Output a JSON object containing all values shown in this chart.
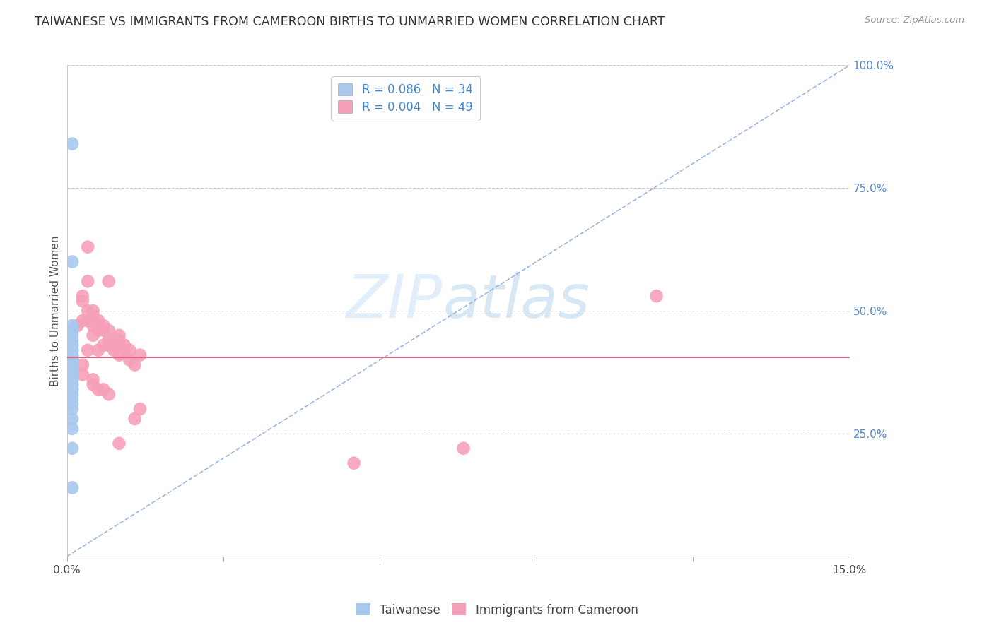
{
  "title": "TAIWANESE VS IMMIGRANTS FROM CAMEROON BIRTHS TO UNMARRIED WOMEN CORRELATION CHART",
  "source": "Source: ZipAtlas.com",
  "ylabel": "Births to Unmarried Women",
  "xlim": [
    0.0,
    0.15
  ],
  "ylim": [
    0.0,
    1.0
  ],
  "yticks": [
    0.0,
    0.25,
    0.5,
    0.75,
    1.0
  ],
  "ytick_labels": [
    "",
    "25.0%",
    "50.0%",
    "75.0%",
    "100.0%"
  ],
  "xticks": [
    0.0,
    0.03,
    0.06,
    0.09,
    0.12,
    0.15
  ],
  "xtick_labels": [
    "0.0%",
    "",
    "",
    "",
    "",
    "15.0%"
  ],
  "watermark_zip": "ZIP",
  "watermark_atlas": "atlas",
  "legend_R_taiwanese": "R = 0.086",
  "legend_N_taiwanese": "N = 34",
  "legend_R_cameroon": "R = 0.004",
  "legend_N_cameroon": "N = 49",
  "taiwanese_color": "#a8c8ee",
  "cameroon_color": "#f5a0b8",
  "taiwanese_line_color": "#88aadd",
  "cameroon_line_color": "#e05878",
  "grid_color": "#cccccc",
  "right_tick_color": "#5588cc",
  "tw_regression_x0": 0.0,
  "tw_regression_y0": 0.0,
  "tw_regression_x1": 0.15,
  "tw_regression_y1": 1.0,
  "cam_regression_y": 0.405,
  "taiwanese_x": [
    0.001,
    0.001,
    0.001,
    0.001,
    0.001,
    0.001,
    0.001,
    0.001,
    0.001,
    0.001,
    0.001,
    0.001,
    0.001,
    0.001,
    0.001,
    0.001,
    0.001,
    0.001,
    0.001,
    0.001,
    0.001,
    0.001,
    0.001,
    0.001,
    0.001,
    0.001,
    0.001,
    0.001,
    0.001,
    0.001,
    0.001,
    0.001,
    0.001,
    0.001
  ],
  "taiwanese_y": [
    0.84,
    0.6,
    0.47,
    0.46,
    0.45,
    0.44,
    0.43,
    0.43,
    0.42,
    0.42,
    0.41,
    0.41,
    0.4,
    0.4,
    0.4,
    0.39,
    0.38,
    0.38,
    0.37,
    0.37,
    0.36,
    0.36,
    0.35,
    0.35,
    0.34,
    0.34,
    0.33,
    0.32,
    0.31,
    0.3,
    0.28,
    0.26,
    0.22,
    0.14
  ],
  "cameroon_x": [
    0.004,
    0.008,
    0.004,
    0.003,
    0.003,
    0.005,
    0.005,
    0.004,
    0.004,
    0.003,
    0.006,
    0.006,
    0.002,
    0.007,
    0.005,
    0.008,
    0.007,
    0.006,
    0.005,
    0.01,
    0.008,
    0.009,
    0.01,
    0.007,
    0.008,
    0.011,
    0.009,
    0.011,
    0.006,
    0.004,
    0.009,
    0.012,
    0.014,
    0.01,
    0.012,
    0.013,
    0.003,
    0.003,
    0.005,
    0.005,
    0.007,
    0.006,
    0.008,
    0.014,
    0.013,
    0.01,
    0.076,
    0.113,
    0.055
  ],
  "cameroon_y": [
    0.63,
    0.56,
    0.56,
    0.53,
    0.52,
    0.5,
    0.49,
    0.5,
    0.48,
    0.48,
    0.48,
    0.47,
    0.47,
    0.47,
    0.47,
    0.46,
    0.46,
    0.46,
    0.45,
    0.45,
    0.44,
    0.44,
    0.44,
    0.43,
    0.43,
    0.43,
    0.43,
    0.42,
    0.42,
    0.42,
    0.42,
    0.42,
    0.41,
    0.41,
    0.4,
    0.39,
    0.39,
    0.37,
    0.36,
    0.35,
    0.34,
    0.34,
    0.33,
    0.3,
    0.28,
    0.23,
    0.22,
    0.53,
    0.19
  ]
}
